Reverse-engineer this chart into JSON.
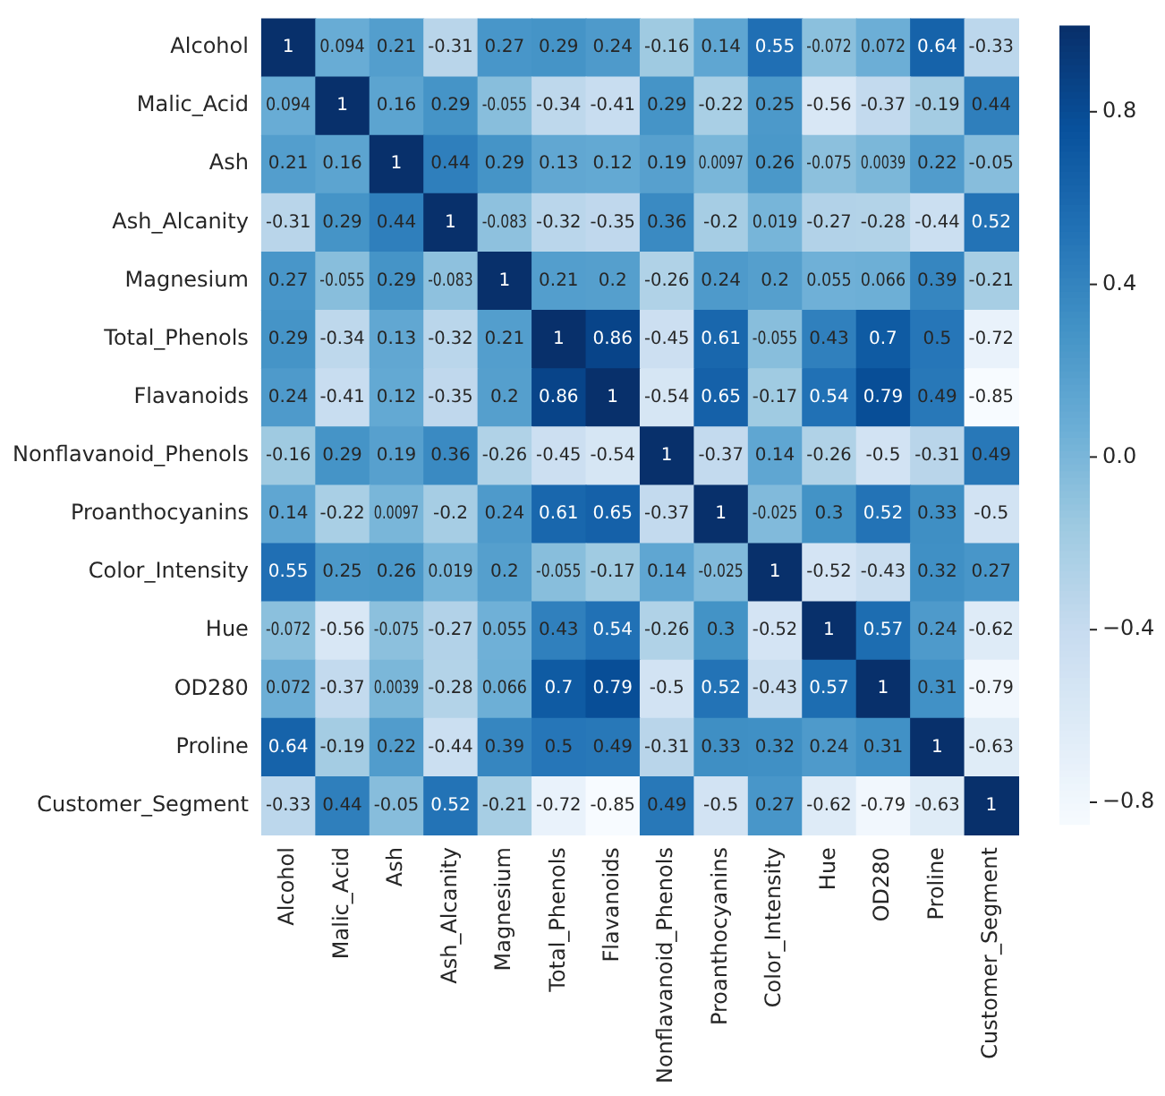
{
  "chart_data": {
    "type": "heatmap",
    "categories": [
      "Alcohol",
      "Malic_Acid",
      "Ash",
      "Ash_Alcanity",
      "Magnesium",
      "Total_Phenols",
      "Flavanoids",
      "Nonflavanoid_Phenols",
      "Proanthocyanins",
      "Color_Intensity",
      "Hue",
      "OD280",
      "Proline",
      "Customer_Segment"
    ],
    "y_categories": [
      "Alcohol",
      "Malic_Acid",
      "Ash",
      "Ash_Alcanity",
      "Magnesium",
      "Total_Phenols",
      "Flavanoids",
      "Nonflavanoid_Phenols",
      "Proanthocyanins",
      "Color_Intensity",
      "Hue",
      "OD280",
      "Proline",
      "Customer_Segment"
    ],
    "cells": [
      [
        1,
        0.094,
        0.21,
        -0.31,
        0.27,
        0.29,
        0.24,
        -0.16,
        0.14,
        0.55,
        -0.072,
        0.072,
        0.64,
        -0.33
      ],
      [
        0.094,
        1,
        0.16,
        0.29,
        -0.055,
        -0.34,
        -0.41,
        0.29,
        -0.22,
        0.25,
        -0.56,
        -0.37,
        -0.19,
        0.44
      ],
      [
        0.21,
        0.16,
        1,
        0.44,
        0.29,
        0.13,
        0.12,
        0.19,
        0.0097,
        0.26,
        -0.075,
        0.0039,
        0.22,
        -0.05
      ],
      [
        -0.31,
        0.29,
        0.44,
        1,
        -0.083,
        -0.32,
        -0.35,
        0.36,
        -0.2,
        0.019,
        -0.27,
        -0.28,
        -0.44,
        0.52
      ],
      [
        0.27,
        -0.055,
        0.29,
        -0.083,
        1,
        0.21,
        0.2,
        -0.26,
        0.24,
        0.2,
        0.055,
        0.066,
        0.39,
        -0.21
      ],
      [
        0.29,
        -0.34,
        0.13,
        -0.32,
        0.21,
        1,
        0.86,
        -0.45,
        0.61,
        -0.055,
        0.43,
        0.7,
        0.5,
        -0.72
      ],
      [
        0.24,
        -0.41,
        0.12,
        -0.35,
        0.2,
        0.86,
        1,
        -0.54,
        0.65,
        -0.17,
        0.54,
        0.79,
        0.49,
        -0.85
      ],
      [
        -0.16,
        0.29,
        0.19,
        0.36,
        -0.26,
        -0.45,
        -0.54,
        1,
        -0.37,
        0.14,
        -0.26,
        -0.5,
        -0.31,
        0.49
      ],
      [
        0.14,
        -0.22,
        0.0097,
        -0.2,
        0.24,
        0.61,
        0.65,
        -0.37,
        1,
        -0.025,
        0.3,
        0.52,
        0.33,
        -0.5
      ],
      [
        0.55,
        0.25,
        0.26,
        0.019,
        0.2,
        -0.055,
        -0.17,
        0.14,
        -0.025,
        1,
        -0.52,
        -0.43,
        0.32,
        0.27
      ],
      [
        -0.072,
        -0.56,
        -0.075,
        -0.27,
        0.055,
        0.43,
        0.54,
        -0.26,
        0.3,
        -0.52,
        1,
        0.57,
        0.24,
        -0.62
      ],
      [
        0.072,
        -0.37,
        0.0039,
        -0.28,
        0.066,
        0.7,
        0.79,
        -0.5,
        0.52,
        -0.43,
        0.57,
        1,
        0.31,
        -0.79
      ],
      [
        0.64,
        -0.19,
        0.22,
        -0.44,
        0.39,
        0.5,
        0.49,
        -0.31,
        0.33,
        0.32,
        0.24,
        0.31,
        1,
        -0.63
      ],
      [
        -0.33,
        0.44,
        -0.05,
        0.52,
        -0.21,
        -0.72,
        -0.85,
        0.49,
        -0.5,
        0.27,
        -0.62,
        -0.79,
        -0.63,
        1
      ]
    ],
    "clim": [
      -0.85,
      1
    ],
    "cticks": [
      {
        "value": 0.8,
        "label": "0.8"
      },
      {
        "value": 0.4,
        "label": "0.4"
      },
      {
        "value": 0,
        "label": "0.0"
      },
      {
        "value": -0.4,
        "label": "−0.4"
      },
      {
        "value": -0.8,
        "label": "−0.8"
      }
    ],
    "data_labels": true
  }
}
